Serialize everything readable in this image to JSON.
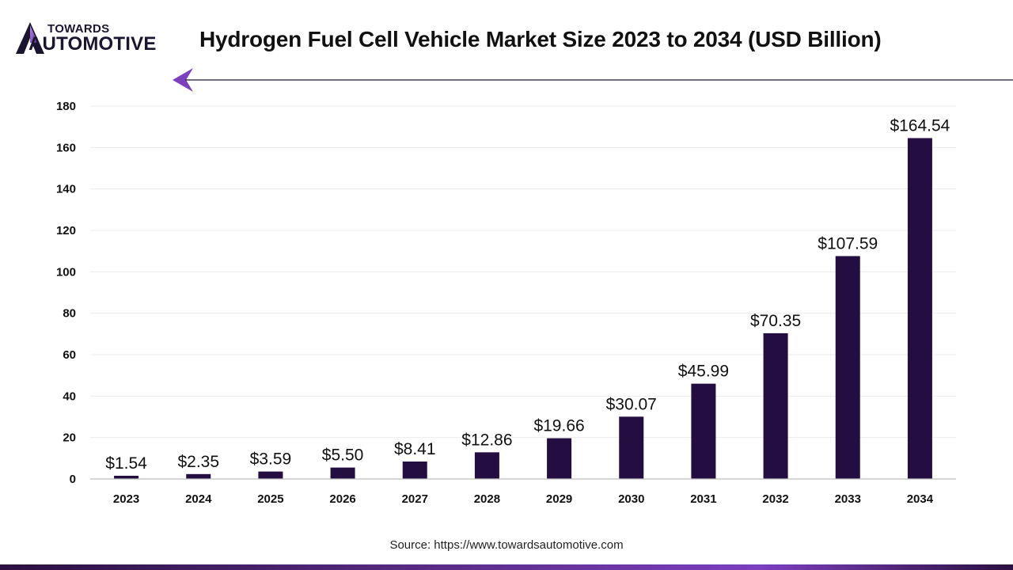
{
  "brand": {
    "name_top": "TOWARDS",
    "name_main": "AUTOMOTIVE",
    "logo_icon": "brand-logo-icon",
    "primary_color": "#240d41",
    "accent_color": "#7c3fc0"
  },
  "source_text": "Source: https://www.towardsautomotive.com",
  "chart_data": {
    "type": "bar",
    "title": "Hydrogen Fuel Cell Vehicle Market Size 2023 to 2034 (USD Billion)",
    "categories": [
      "2023",
      "2024",
      "2025",
      "2026",
      "2027",
      "2028",
      "2029",
      "2030",
      "2031",
      "2032",
      "2033",
      "2034"
    ],
    "values": [
      1.54,
      2.35,
      3.59,
      5.5,
      8.41,
      12.86,
      19.66,
      30.07,
      45.99,
      70.35,
      107.59,
      164.54
    ],
    "data_labels": [
      "$1.54",
      "$2.35",
      "$3.59",
      "$5.50",
      "$8.41",
      "$12.86",
      "$19.66",
      "$30.07",
      "$45.99",
      "$70.35",
      "$107.59",
      "$164.54"
    ],
    "xlabel": "",
    "ylabel": "",
    "ylim": [
      0,
      180
    ],
    "yticks": [
      0,
      20,
      40,
      60,
      80,
      100,
      120,
      140,
      160,
      180
    ],
    "grid": true,
    "legend": "none",
    "bar_color": "#240d41"
  }
}
